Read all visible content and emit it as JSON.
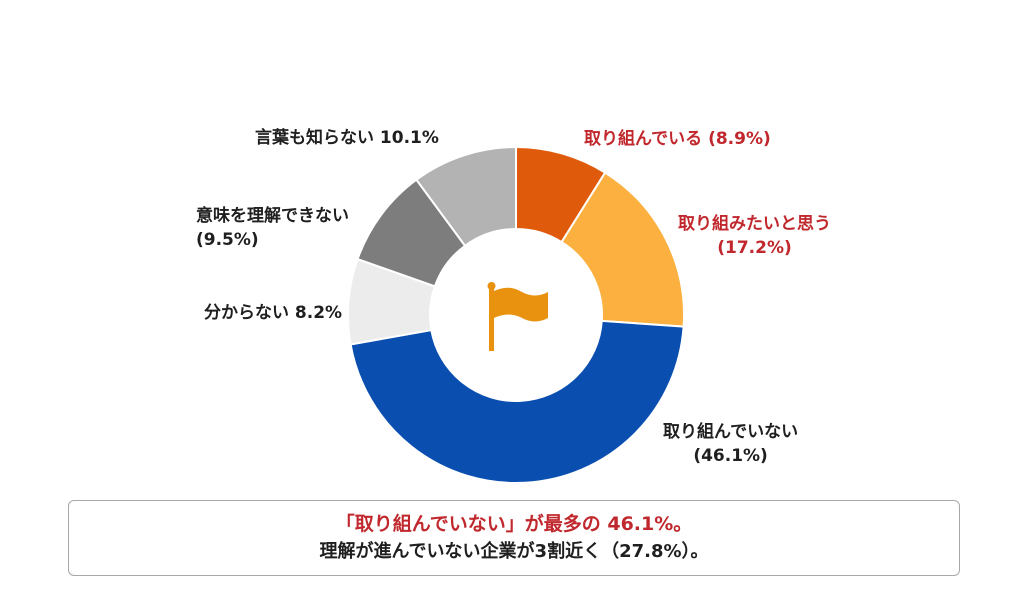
{
  "chart_data": {
    "type": "pie",
    "style": "donut",
    "center_icon": "flag-icon",
    "slices": [
      {
        "label": "取り組んでいる",
        "value": 8.9,
        "display": "(8.9%)",
        "color": "#e05a0c",
        "highlight": true
      },
      {
        "label": "取り組みたいと思う",
        "value": 17.2,
        "display": "(17.2%)",
        "color": "#fbb040",
        "highlight": true
      },
      {
        "label": "取り組んでいない",
        "value": 46.1,
        "display": "(46.1%)",
        "color": "#0a4fb0",
        "highlight": false
      },
      {
        "label": "分からない",
        "value": 8.2,
        "display": "8.2%",
        "color": "#ececec",
        "highlight": false
      },
      {
        "label": "意味を理解できない",
        "value": 9.5,
        "display": "(9.5%)",
        "color": "#7d7d7d",
        "highlight": false
      },
      {
        "label": "言葉も知らない",
        "value": 10.1,
        "display": "10.1%",
        "color": "#b3b3b3",
        "highlight": false
      }
    ]
  },
  "summary": {
    "line1": "「取り組んでいない」が最多の 46.1%。",
    "line2": "理解が進んでいない企業が3割近く（27.8%）。"
  },
  "colors": {
    "highlight_text": "#c0282d",
    "icon": "#e8920f"
  }
}
